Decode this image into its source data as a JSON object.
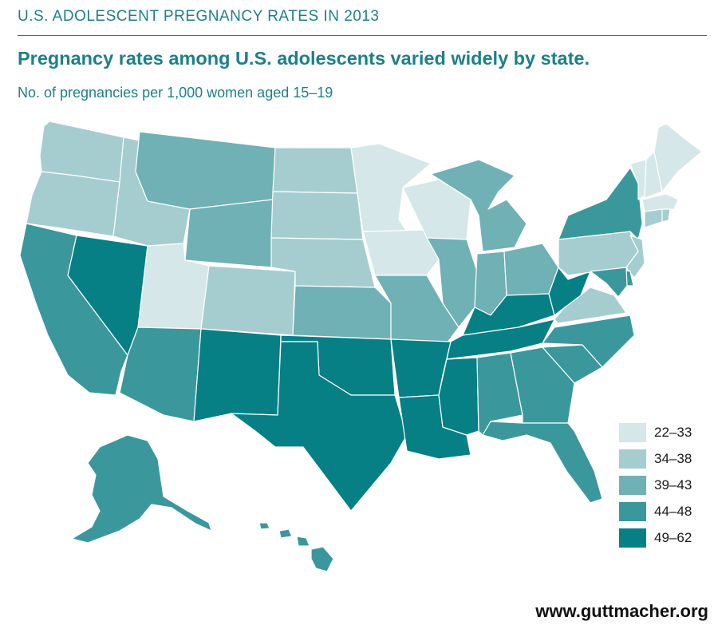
{
  "header": {
    "label": "U.S. ADOLESCENT PREGNANCY RATES IN 2013"
  },
  "title": "Pregnancy rates among U.S. adolescents varied widely by state.",
  "subtitle": "No. of pregnancies per 1,000 women aged 15–19",
  "colors": {
    "accent": "#1d8088",
    "c1": "#d5e7e8",
    "c2": "#a5cdcf",
    "c3": "#6fb1b5",
    "c4": "#3a989d",
    "c5": "#067f85"
  },
  "legend": {
    "items": [
      {
        "label": "22–33",
        "color_key": "c1"
      },
      {
        "label": "34–38",
        "color_key": "c2"
      },
      {
        "label": "39–43",
        "color_key": "c3"
      },
      {
        "label": "44–48",
        "color_key": "c4"
      },
      {
        "label": "49–62",
        "color_key": "c5"
      }
    ]
  },
  "states": [
    {
      "id": "WA",
      "color_key": "c2"
    },
    {
      "id": "OR",
      "color_key": "c2"
    },
    {
      "id": "CA",
      "color_key": "c4"
    },
    {
      "id": "NV",
      "color_key": "c5"
    },
    {
      "id": "ID",
      "color_key": "c2"
    },
    {
      "id": "MT",
      "color_key": "c3"
    },
    {
      "id": "WY",
      "color_key": "c3"
    },
    {
      "id": "UT",
      "color_key": "c1"
    },
    {
      "id": "AZ",
      "color_key": "c4"
    },
    {
      "id": "CO",
      "color_key": "c2"
    },
    {
      "id": "NM",
      "color_key": "c5"
    },
    {
      "id": "ND",
      "color_key": "c2"
    },
    {
      "id": "SD",
      "color_key": "c2"
    },
    {
      "id": "NE",
      "color_key": "c2"
    },
    {
      "id": "KS",
      "color_key": "c3"
    },
    {
      "id": "OK",
      "color_key": "c5"
    },
    {
      "id": "TX",
      "color_key": "c5"
    },
    {
      "id": "MN",
      "color_key": "c1"
    },
    {
      "id": "IA",
      "color_key": "c1"
    },
    {
      "id": "MO",
      "color_key": "c3"
    },
    {
      "id": "AR",
      "color_key": "c5"
    },
    {
      "id": "LA",
      "color_key": "c5"
    },
    {
      "id": "WI",
      "color_key": "c1"
    },
    {
      "id": "IL",
      "color_key": "c3"
    },
    {
      "id": "MI",
      "color_key": "c3"
    },
    {
      "id": "IN",
      "color_key": "c3"
    },
    {
      "id": "OH",
      "color_key": "c3"
    },
    {
      "id": "KY",
      "color_key": "c5"
    },
    {
      "id": "TN",
      "color_key": "c5"
    },
    {
      "id": "MS",
      "color_key": "c5"
    },
    {
      "id": "AL",
      "color_key": "c4"
    },
    {
      "id": "GA",
      "color_key": "c4"
    },
    {
      "id": "FL",
      "color_key": "c4"
    },
    {
      "id": "SC",
      "color_key": "c4"
    },
    {
      "id": "NC",
      "color_key": "c4"
    },
    {
      "id": "VA",
      "color_key": "c2"
    },
    {
      "id": "WV",
      "color_key": "c5"
    },
    {
      "id": "PA",
      "color_key": "c2"
    },
    {
      "id": "NY",
      "color_key": "c4"
    },
    {
      "id": "NJ",
      "color_key": "c2"
    },
    {
      "id": "DE",
      "color_key": "c4"
    },
    {
      "id": "MD",
      "color_key": "c4"
    },
    {
      "id": "VT",
      "color_key": "c1"
    },
    {
      "id": "NH",
      "color_key": "c1"
    },
    {
      "id": "ME",
      "color_key": "c1"
    },
    {
      "id": "MA",
      "color_key": "c1"
    },
    {
      "id": "CT",
      "color_key": "c2"
    },
    {
      "id": "RI",
      "color_key": "c2"
    },
    {
      "id": "AK",
      "color_key": "c4"
    },
    {
      "id": "HI",
      "color_key": "c4"
    }
  ],
  "footer": {
    "url": "www.guttmacher.org"
  }
}
